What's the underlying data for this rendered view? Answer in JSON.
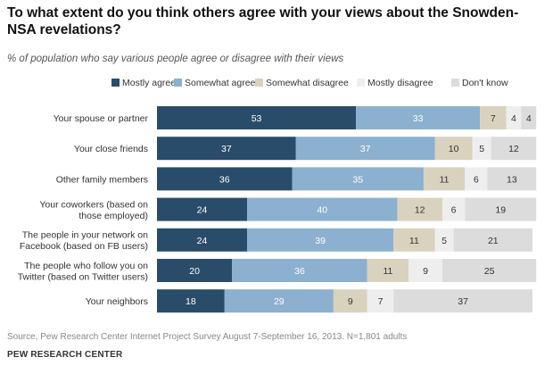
{
  "title": "To what extent do you think others agree with your views about the Snowden-NSA revelations?",
  "subtitle": "% of population who say various people agree or disagree with their views",
  "source": "Source, Pew Research Center Internet Project Survey August 7-September 16, 2013. N=1,801 adults",
  "footer": "PEW RESEARCH CENTER",
  "colors": {
    "mostly_agree": "#2a4c6b",
    "somewhat_agree": "#8cb0cf",
    "somewhat_disagree": "#d9d2bf",
    "mostly_disagree": "#eeeeee",
    "dont_know": "#dcdcdc"
  },
  "chart_data": {
    "type": "bar",
    "orientation": "horizontal-stacked",
    "title": "To what extent do you think others agree with your views about the Snowden-NSA revelations?",
    "categories": [
      "Your spouse or partner",
      "Your close friends",
      "Other family members",
      "Your coworkers (based on those employed)",
      "The people in your network on Facebook (based on FB users)",
      "The people who follow you on Twitter (based on Twitter users)",
      "Your neighbors"
    ],
    "category_lines": [
      [
        "Your spouse or partner"
      ],
      [
        "Your close friends"
      ],
      [
        "Other family members"
      ],
      [
        "Your coworkers (based on",
        "those employed)"
      ],
      [
        "The people in your network on",
        "Facebook (based on FB users)"
      ],
      [
        "The people who follow you on",
        "Twitter (based on Twitter users)"
      ],
      [
        "Your neighbors"
      ]
    ],
    "series": [
      {
        "name": "Mostly agree",
        "key": "mostly_agree",
        "values": [
          53,
          37,
          36,
          24,
          24,
          20,
          18
        ]
      },
      {
        "name": "Somewhat agree",
        "key": "somewhat_agree",
        "values": [
          33,
          37,
          35,
          40,
          39,
          36,
          29
        ]
      },
      {
        "name": "Somewhat disagree",
        "key": "somewhat_disagree",
        "values": [
          7,
          10,
          11,
          12,
          11,
          11,
          9
        ]
      },
      {
        "name": "Mostly disagree",
        "key": "mostly_disagree",
        "values": [
          4,
          5,
          6,
          6,
          5,
          9,
          7
        ]
      },
      {
        "name": "Don't know",
        "key": "dont_know",
        "values": [
          4,
          12,
          13,
          19,
          21,
          25,
          37
        ]
      }
    ],
    "xlim": [
      0,
      100
    ],
    "legend": "top"
  }
}
